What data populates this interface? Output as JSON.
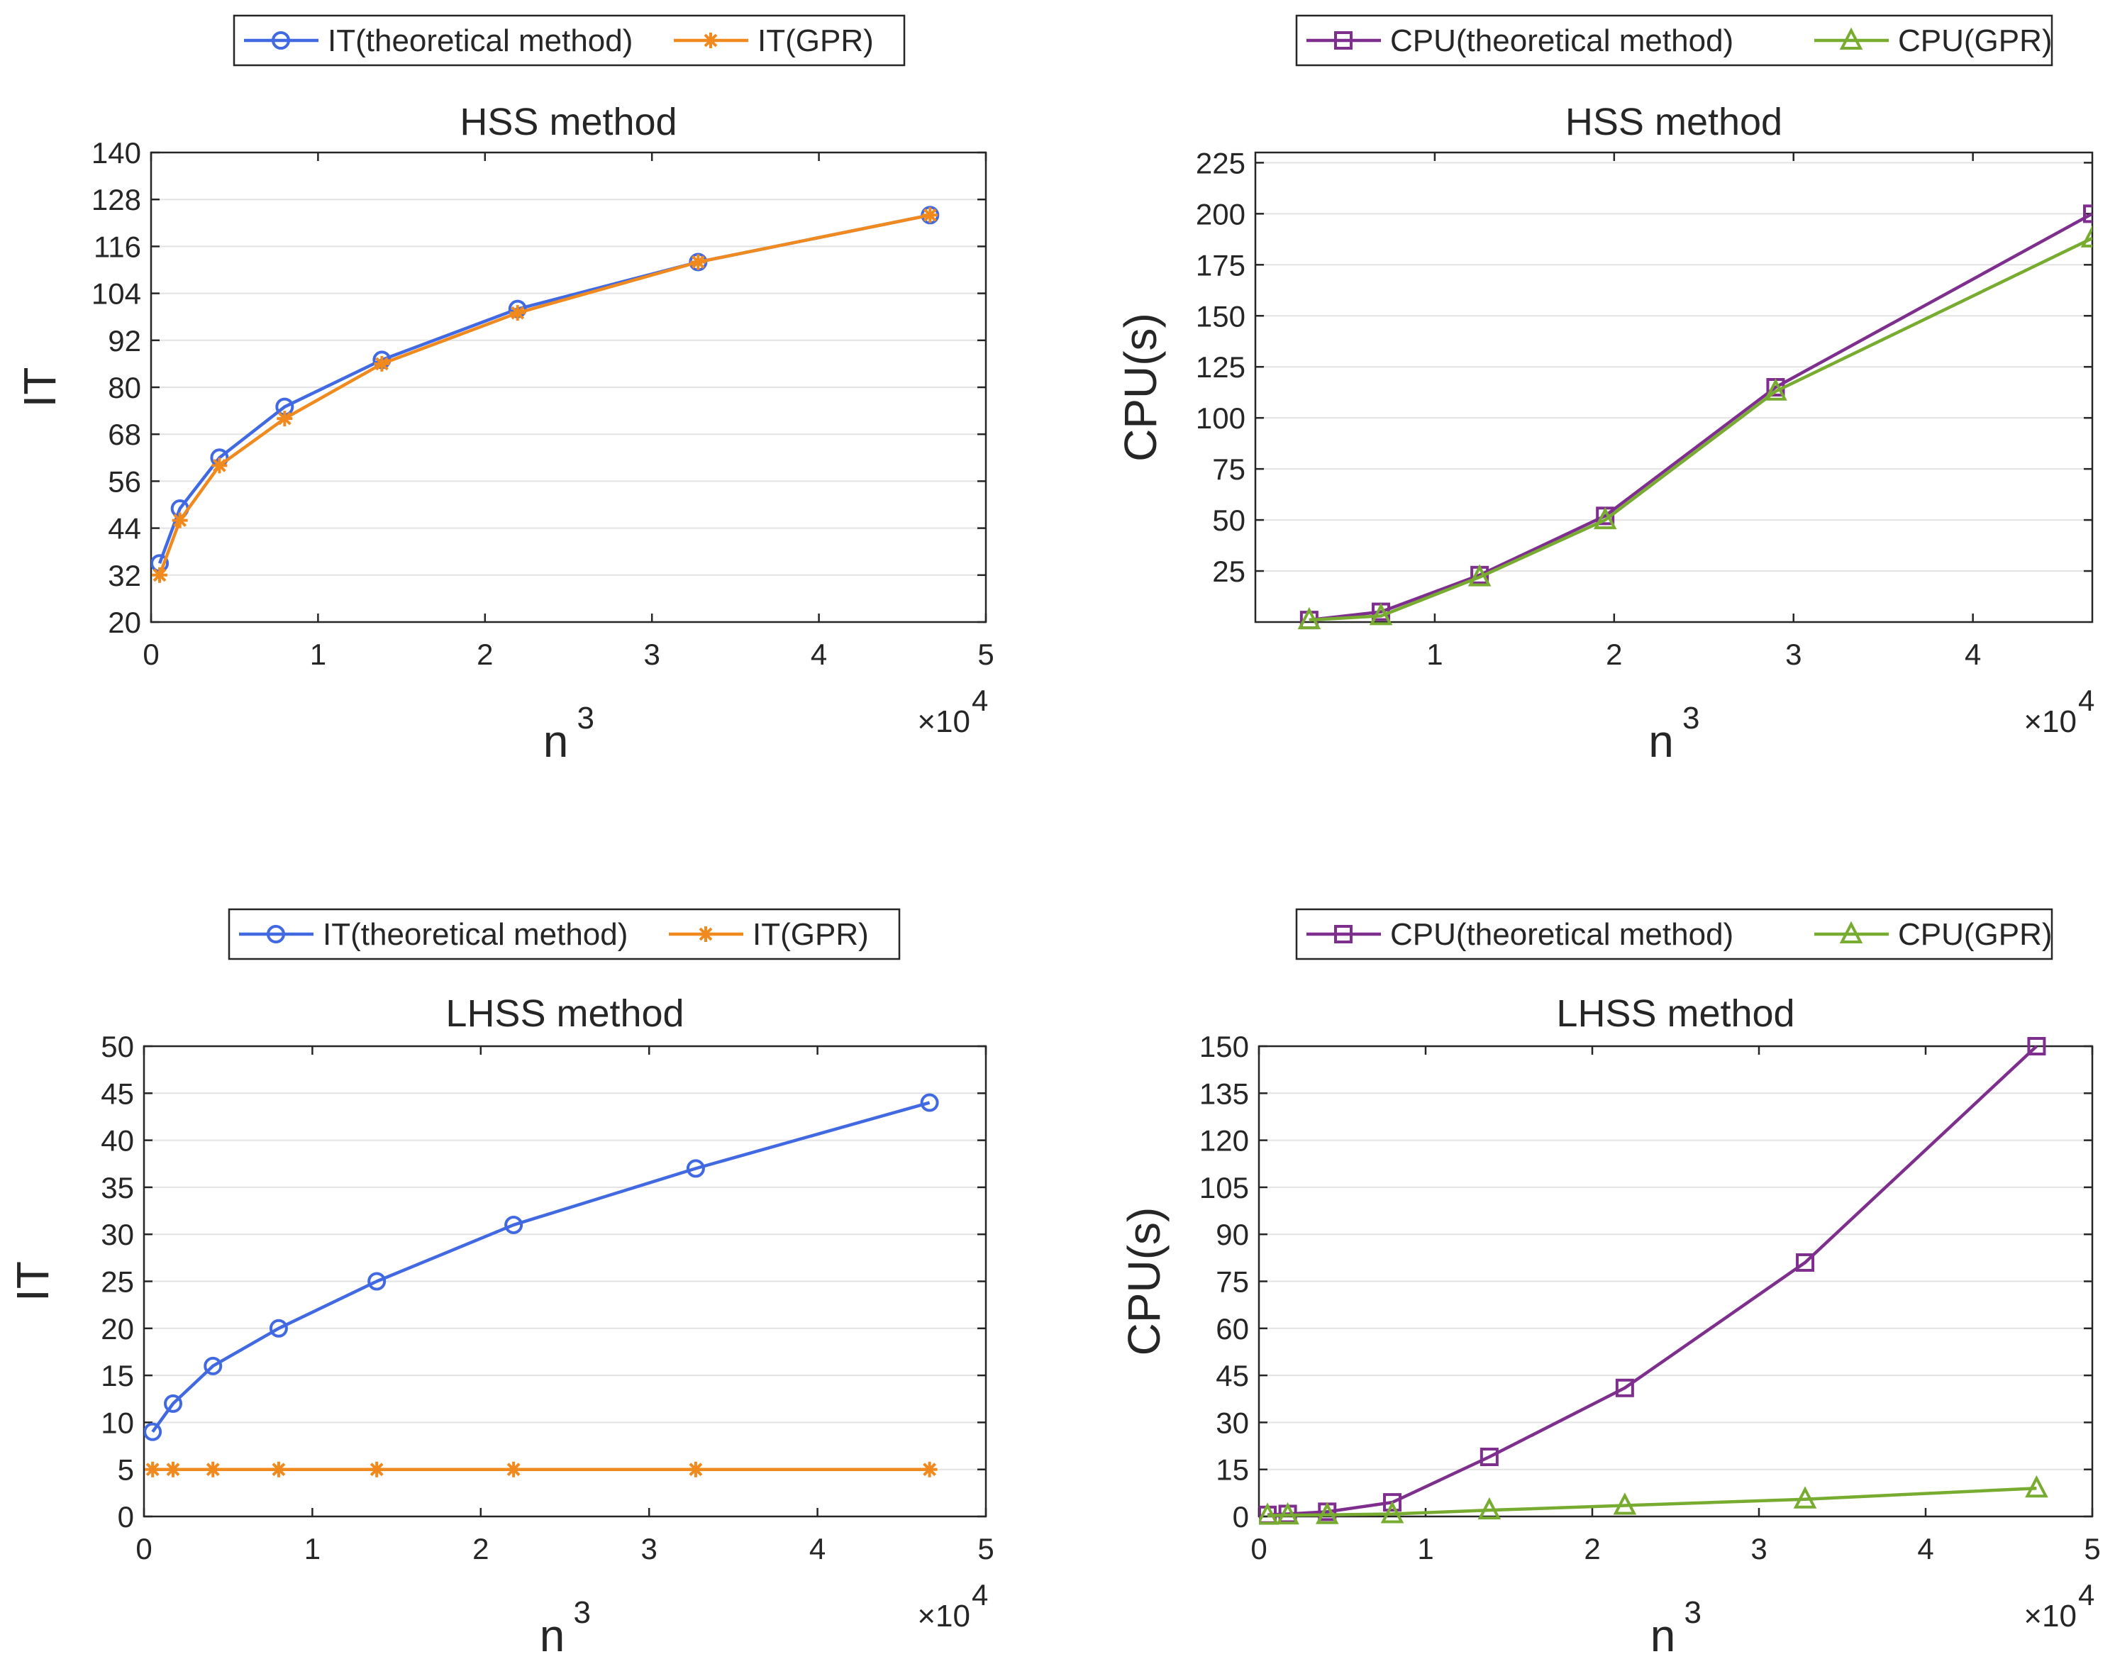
{
  "chart_data": [
    {
      "type": "line",
      "title": "HSS method",
      "xlabel": "n",
      "xlabel_superscript": "3",
      "ylabel": "IT",
      "x_multiplier": "×10",
      "x_multiplier_exp": "4",
      "xlim": [
        0,
        50000
      ],
      "ylim": [
        20,
        140
      ],
      "xticks": [
        0,
        10000,
        20000,
        30000,
        40000,
        50000
      ],
      "xtick_labels": [
        "0",
        "1",
        "2",
        "3",
        "4",
        "5"
      ],
      "yticks": [
        20,
        32,
        44,
        56,
        68,
        80,
        92,
        104,
        116,
        128,
        140
      ],
      "ytick_labels": [
        "20",
        "32",
        "44",
        "56",
        "68",
        "80",
        "92",
        "104",
        "116",
        "128",
        "140"
      ],
      "grid": "horizontal",
      "legend_position": "top",
      "series": [
        {
          "name": "IT(theoretical method)",
          "color": "#4169E1",
          "marker": "circle",
          "x": [
            512,
            1728,
            4096,
            8000,
            13824,
            21952,
            32768,
            46656
          ],
          "y": [
            35,
            49,
            62,
            75,
            87,
            100,
            112,
            124
          ]
        },
        {
          "name": "IT(GPR)",
          "color": "#F08A1E",
          "marker": "star",
          "x": [
            512,
            1728,
            4096,
            8000,
            13824,
            21952,
            32768,
            46656
          ],
          "y": [
            32,
            46,
            60,
            72,
            86,
            99,
            112,
            124
          ]
        }
      ]
    },
    {
      "type": "line",
      "title": "HSS method",
      "xlabel": "n",
      "xlabel_superscript": "3",
      "ylabel": "CPU(s)",
      "x_multiplier": "×10",
      "x_multiplier_exp": "4",
      "xlim": [
        0,
        46656
      ],
      "ylim": [
        0,
        230
      ],
      "xticks": [
        10000,
        20000,
        30000,
        40000
      ],
      "xtick_labels": [
        "1",
        "2",
        "3",
        "4"
      ],
      "yticks": [
        25,
        50,
        75,
        100,
        125,
        150,
        175,
        200,
        225
      ],
      "ytick_labels": [
        "25",
        "50",
        "75",
        "100",
        "125",
        "150",
        "175",
        "200",
        "225"
      ],
      "grid": "horizontal",
      "legend_position": "top",
      "series": [
        {
          "name": "CPU(theoretical method)",
          "color": "#7E2F8E",
          "marker": "square",
          "x": [
            3000,
            7000,
            12500,
            19500,
            29000,
            46656
          ],
          "y": [
            1,
            5,
            23,
            52,
            115,
            200
          ]
        },
        {
          "name": "CPU(GPR)",
          "color": "#77AC30",
          "marker": "triangle",
          "x": [
            3000,
            7000,
            12500,
            19500,
            29000,
            46656
          ],
          "y": [
            1,
            3,
            22,
            50,
            113,
            188
          ]
        }
      ]
    },
    {
      "type": "line",
      "title": "LHSS method",
      "xlabel": "n",
      "xlabel_superscript": "3",
      "ylabel": "IT",
      "x_multiplier": "×10",
      "x_multiplier_exp": "4",
      "xlim": [
        0,
        50000
      ],
      "ylim": [
        0,
        50
      ],
      "xticks": [
        0,
        10000,
        20000,
        30000,
        40000,
        50000
      ],
      "xtick_labels": [
        "0",
        "1",
        "2",
        "3",
        "4",
        "5"
      ],
      "yticks": [
        0,
        5,
        10,
        15,
        20,
        25,
        30,
        35,
        40,
        45,
        50
      ],
      "ytick_labels": [
        "0",
        "5",
        "10",
        "15",
        "20",
        "25",
        "30",
        "35",
        "40",
        "45",
        "50"
      ],
      "grid": "horizontal",
      "legend_position": "top",
      "series": [
        {
          "name": "IT(theoretical method)",
          "color": "#4169E1",
          "marker": "circle",
          "x": [
            512,
            1728,
            4096,
            8000,
            13824,
            21952,
            32768,
            46656
          ],
          "y": [
            9,
            12,
            16,
            20,
            25,
            31,
            37,
            44
          ]
        },
        {
          "name": "IT(GPR)",
          "color": "#F08A1E",
          "marker": "star",
          "x": [
            512,
            1728,
            4096,
            8000,
            13824,
            21952,
            32768,
            46656
          ],
          "y": [
            5,
            5,
            5,
            5,
            5,
            5,
            5,
            5
          ]
        }
      ]
    },
    {
      "type": "line",
      "title": "LHSS method",
      "xlabel": "n",
      "xlabel_superscript": "3",
      "ylabel": "CPU(s)",
      "x_multiplier": "×10",
      "x_multiplier_exp": "4",
      "xlim": [
        0,
        50000
      ],
      "ylim": [
        0,
        150
      ],
      "xticks": [
        0,
        10000,
        20000,
        30000,
        40000,
        50000
      ],
      "xtick_labels": [
        "0",
        "1",
        "2",
        "3",
        "4",
        "5"
      ],
      "yticks": [
        0,
        15,
        30,
        45,
        60,
        75,
        90,
        105,
        120,
        135,
        150
      ],
      "ytick_labels": [
        "0",
        "15",
        "30",
        "45",
        "60",
        "75",
        "90",
        "105",
        "120",
        "135",
        "150"
      ],
      "grid": "horizontal",
      "legend_position": "top",
      "series": [
        {
          "name": "CPU(theoretical method)",
          "color": "#7E2F8E",
          "marker": "square",
          "x": [
            512,
            1728,
            4096,
            8000,
            13824,
            21952,
            32768,
            46656
          ],
          "y": [
            0.5,
            0.8,
            1.5,
            4.5,
            19,
            41,
            81,
            150
          ]
        },
        {
          "name": "CPU(GPR)",
          "color": "#77AC30",
          "marker": "triangle",
          "x": [
            512,
            1728,
            4096,
            8000,
            13824,
            21952,
            32768,
            46656
          ],
          "y": [
            0.3,
            0.4,
            0.5,
            0.8,
            2,
            3.5,
            5.5,
            9
          ]
        }
      ]
    }
  ]
}
